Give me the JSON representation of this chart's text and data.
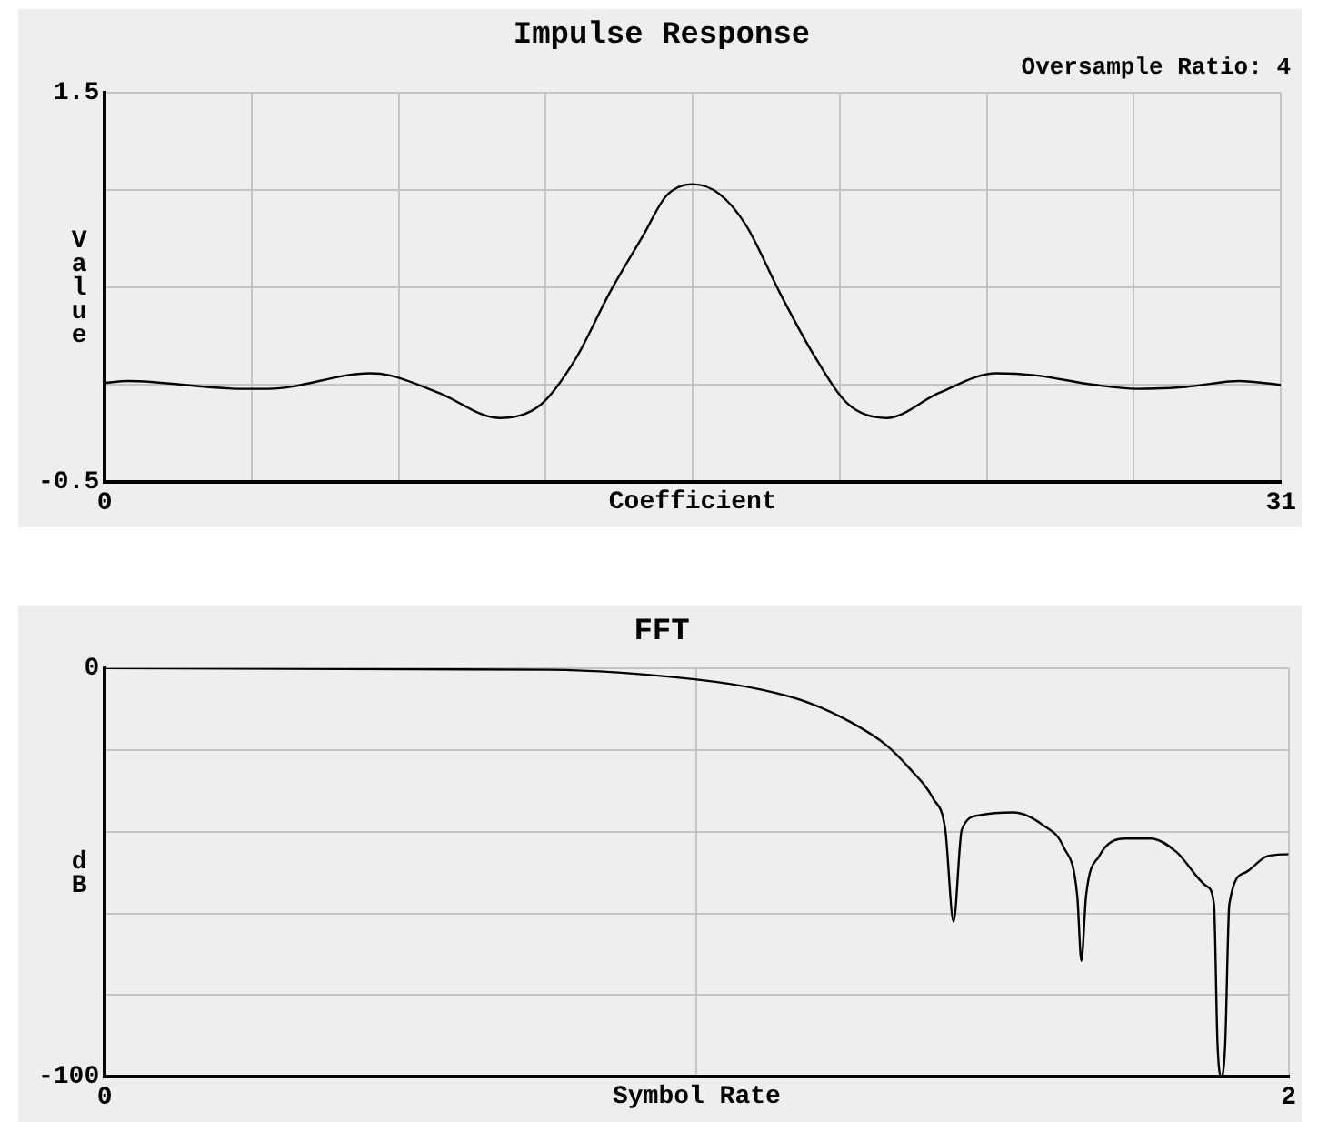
{
  "chart_data": [
    {
      "type": "line",
      "title": "Impulse Response",
      "subtitle": "Oversample Ratio: 4",
      "xlabel": "Coefficient",
      "ylabel": "Value",
      "color": "#000000",
      "x": [
        0,
        0.6,
        3.6,
        4.3,
        7.0,
        7.5,
        8.8,
        10.4,
        11.5,
        12.4,
        13.3,
        14.2,
        14.8,
        15.5,
        16.2,
        16.9,
        17.8,
        18.7,
        19.6,
        20.6,
        22.0,
        23.5,
        24.5,
        26.1,
        27.2,
        28.5,
        29.9,
        31
      ],
      "values": [
        0.01,
        0.02,
        -0.02,
        -0.02,
        0.06,
        0.05,
        -0.04,
        -0.17,
        -0.1,
        0.13,
        0.47,
        0.77,
        0.97,
        1.03,
        0.98,
        0.82,
        0.47,
        0.15,
        -0.1,
        -0.17,
        -0.04,
        0.06,
        0.05,
        0,
        -0.02,
        -0.01,
        0.02,
        0
      ],
      "xlim": [
        0,
        31
      ],
      "ylim": [
        -0.5,
        1.5
      ],
      "xticks": [
        0,
        {
          "value": 3.875,
          "label": null
        },
        {
          "value": 7.75,
          "label": null
        },
        {
          "value": 11.625,
          "label": null
        },
        {
          "value": 15.5,
          "label": null
        },
        {
          "value": 19.375,
          "label": null
        },
        {
          "value": 23.25,
          "label": null
        },
        {
          "value": 27.125,
          "label": null
        },
        31
      ],
      "yticks": [
        -0.5,
        {
          "value": 0,
          "label": null
        },
        {
          "value": 0.5,
          "label": null
        },
        {
          "value": 1,
          "label": null
        },
        1.5
      ],
      "grid": true
    },
    {
      "type": "line",
      "title": "FFT",
      "xlabel": "Symbol Rate",
      "ylabel": "dB",
      "color": "#000000",
      "x": [
        0,
        0.75,
        1.0,
        1.11,
        1.19,
        1.26,
        1.32,
        1.36,
        1.4,
        1.42,
        1.434,
        1.448,
        1.477,
        1.535,
        1.586,
        1.62,
        1.643,
        1.65,
        1.658,
        1.68,
        1.724,
        1.768,
        1.81,
        1.862,
        1.874,
        1.88,
        1.887,
        1.893,
        1.9,
        1.927,
        1.964,
        2.0
      ],
      "values": [
        0,
        -0.4,
        -2.8,
        -5.3,
        -8.5,
        -13.2,
        -18.8,
        -24.6,
        -32,
        -39.5,
        -62,
        -39.5,
        -36,
        -35.3,
        -38.5,
        -43.8,
        -55.6,
        -71.6,
        -55.6,
        -46,
        -41.7,
        -41.7,
        -44.9,
        -53.4,
        -57.7,
        -91.9,
        -100,
        -91.9,
        -57.7,
        -50,
        -46,
        -45.5
      ],
      "xlim": [
        0,
        2
      ],
      "ylim": [
        -100,
        0
      ],
      "xticks": [
        0,
        {
          "value": 1,
          "label": null
        },
        2
      ],
      "yticks": [
        -100,
        {
          "value": -80,
          "label": null
        },
        {
          "value": -60,
          "label": null
        },
        {
          "value": -40,
          "label": null
        },
        {
          "value": -20,
          "label": null
        },
        0
      ],
      "grid": true
    }
  ]
}
